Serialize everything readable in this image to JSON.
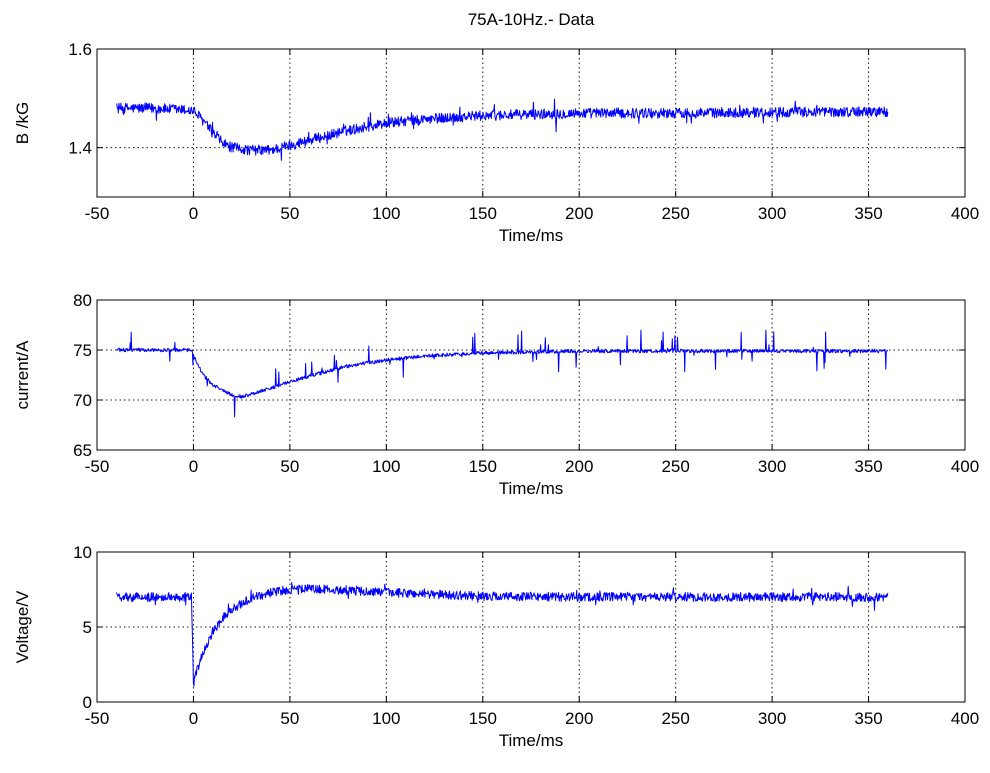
{
  "chart_data": [
    {
      "type": "line",
      "title": "75A-10Hz.- Data",
      "xlabel": "Time/ms",
      "ylabel": "B /kG",
      "xlim": [
        -50,
        400
      ],
      "ylim": [
        1.3,
        1.6
      ],
      "xticks": [
        -50,
        0,
        50,
        100,
        150,
        200,
        250,
        300,
        350,
        400
      ],
      "yticks": [
        1.4,
        1.6
      ],
      "ytick_labels": [
        "1.4",
        "1.6"
      ],
      "grid": true,
      "color": "#0000ff",
      "series": [
        {
          "x": [
            -40,
            -20,
            0,
            5,
            10,
            15,
            20,
            30,
            40,
            50,
            60,
            80,
            100,
            120,
            150,
            200,
            250,
            300,
            360
          ],
          "values": [
            1.48,
            1.48,
            1.475,
            1.455,
            1.43,
            1.41,
            1.4,
            1.395,
            1.395,
            1.405,
            1.415,
            1.435,
            1.45,
            1.458,
            1.465,
            1.47,
            1.47,
            1.472,
            1.473
          ]
        }
      ]
    },
    {
      "type": "line",
      "title": "",
      "xlabel": "Time/ms",
      "ylabel": "current/A",
      "xlim": [
        -50,
        400
      ],
      "ylim": [
        65,
        80
      ],
      "xticks": [
        -50,
        0,
        50,
        100,
        150,
        200,
        250,
        300,
        350,
        400
      ],
      "yticks": [
        65,
        70,
        75,
        80
      ],
      "ytick_labels": [
        "65",
        "70",
        "75",
        "80"
      ],
      "grid": true,
      "color": "#0000ff",
      "series": [
        {
          "x": [
            -40,
            -20,
            -1,
            0,
            5,
            10,
            15,
            20,
            25,
            30,
            40,
            50,
            60,
            80,
            100,
            120,
            150,
            200,
            250,
            300,
            360
          ],
          "values": [
            75,
            75,
            75,
            74.5,
            72.5,
            71.5,
            71,
            70.5,
            70.3,
            70.6,
            71.2,
            71.8,
            72.4,
            73.4,
            74,
            74.4,
            74.7,
            74.9,
            74.9,
            74.9,
            74.9
          ]
        }
      ]
    },
    {
      "type": "line",
      "title": "",
      "xlabel": "Time/ms",
      "ylabel": "Voltage/V",
      "xlim": [
        -50,
        400
      ],
      "ylim": [
        0,
        10
      ],
      "xticks": [
        -50,
        0,
        50,
        100,
        150,
        200,
        250,
        300,
        350,
        400
      ],
      "yticks": [
        0,
        5,
        10
      ],
      "ytick_labels": [
        "0",
        "5",
        "10"
      ],
      "grid": true,
      "color": "#0000ff",
      "series": [
        {
          "x": [
            -40,
            -20,
            -1,
            0,
            2,
            5,
            10,
            15,
            20,
            30,
            40,
            50,
            60,
            70,
            80,
            100,
            120,
            150,
            200,
            250,
            300,
            360
          ],
          "values": [
            7,
            7,
            7,
            1.2,
            2.2,
            3.3,
            4.7,
            5.6,
            6.2,
            6.9,
            7.3,
            7.5,
            7.55,
            7.5,
            7.45,
            7.3,
            7.2,
            7.05,
            7,
            7,
            7,
            7
          ]
        }
      ]
    }
  ]
}
